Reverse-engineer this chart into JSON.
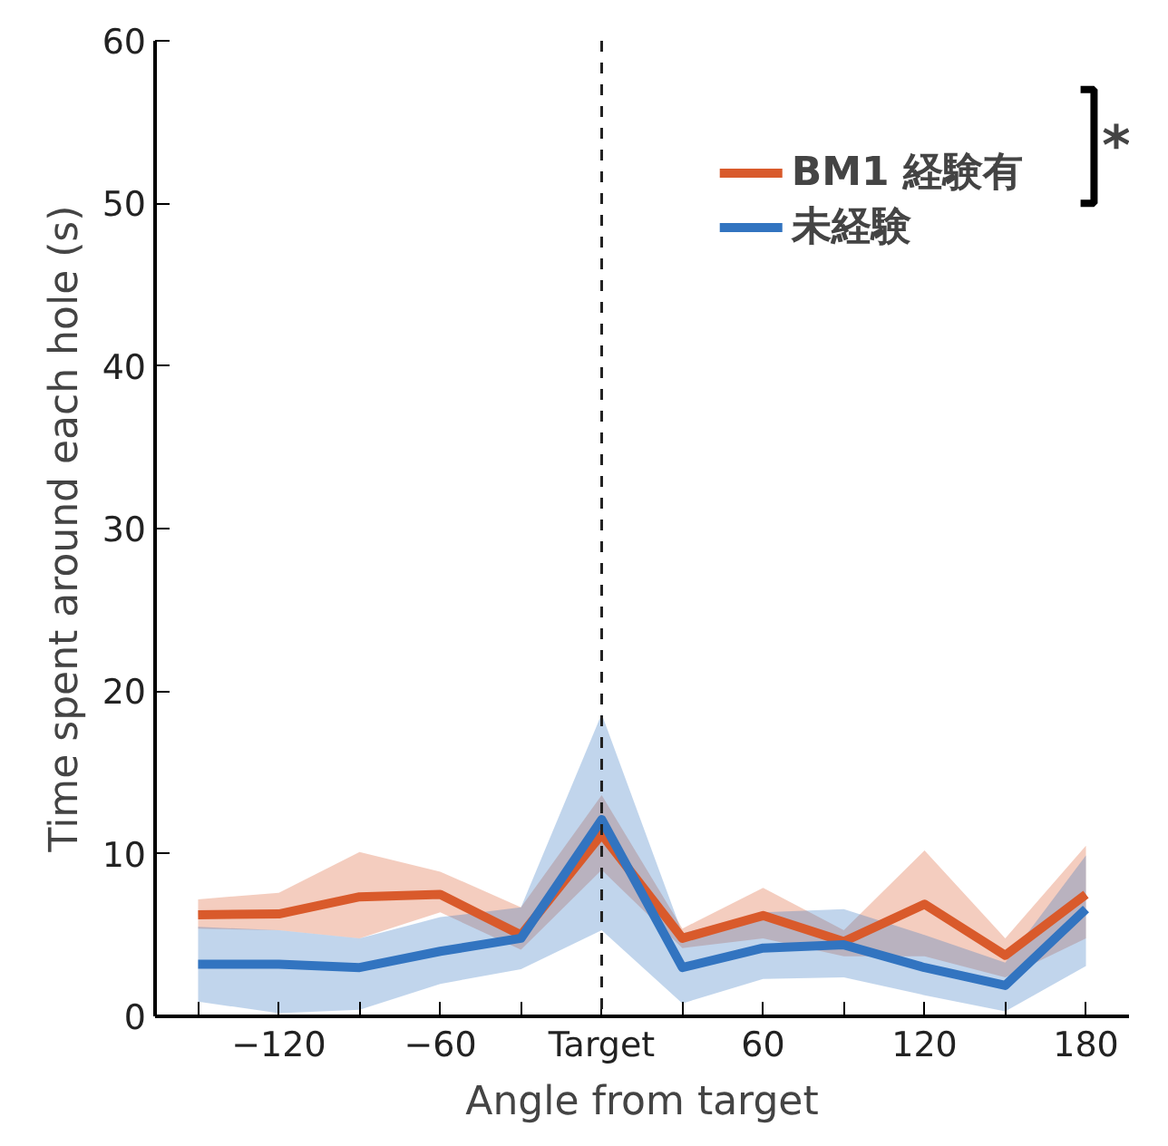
{
  "chart_data": {
    "type": "line",
    "xlabel": "Angle from target",
    "ylabel": "Time spent around each hole (s)",
    "x": [
      -150,
      -120,
      -90,
      -60,
      -30,
      0,
      30,
      60,
      90,
      120,
      150,
      180
    ],
    "xlim": [
      -166,
      196
    ],
    "ylim": [
      0,
      60
    ],
    "xticks": [
      {
        "value": -150,
        "label": null
      },
      -120,
      {
        "value": -90,
        "label": null
      },
      -60,
      {
        "value": -30,
        "label": null
      },
      {
        "value": 0,
        "label": "Target"
      },
      {
        "value": 30,
        "label": null
      },
      60,
      {
        "value": 90,
        "label": null
      },
      120,
      {
        "value": 150,
        "label": null
      },
      180
    ],
    "yticks": [
      0,
      10,
      20,
      30,
      40,
      50,
      60
    ],
    "series": [
      {
        "name": "BM1 経験有",
        "color": "#d95a2b",
        "values": [
          6.25,
          6.3,
          7.35,
          7.5,
          5.0,
          11.2,
          4.8,
          6.2,
          4.6,
          6.9,
          3.75,
          7.5
        ],
        "lower": [
          5.4,
          5.3,
          4.8,
          6.4,
          4.1,
          9.0,
          4.2,
          4.8,
          3.7,
          3.7,
          2.4,
          4.8
        ],
        "upper": [
          7.2,
          7.6,
          10.1,
          8.9,
          6.7,
          13.6,
          5.4,
          7.9,
          5.3,
          10.2,
          4.8,
          10.5
        ]
      },
      {
        "name": "未経験",
        "color": "#3274c0",
        "values": [
          3.2,
          3.2,
          3.0,
          4.0,
          4.8,
          12.1,
          3.0,
          4.2,
          4.4,
          3.0,
          1.9,
          6.6
        ],
        "lower": [
          0.9,
          0.2,
          0.4,
          2.0,
          2.9,
          5.3,
          0.8,
          2.3,
          2.4,
          1.3,
          0.3,
          3.1
        ],
        "upper": [
          5.5,
          5.3,
          4.8,
          6.1,
          6.7,
          18.6,
          5.1,
          6.4,
          6.6,
          5.0,
          3.3,
          9.9
        ]
      }
    ],
    "ref_lines": [
      {
        "axis": "x",
        "value": 0,
        "label": null,
        "color": "#222222",
        "line_style": "dashed"
      }
    ],
    "annotations": [
      "*"
    ],
    "legend": "top right",
    "grid": false,
    "marker": "none",
    "line_style": "solid"
  }
}
